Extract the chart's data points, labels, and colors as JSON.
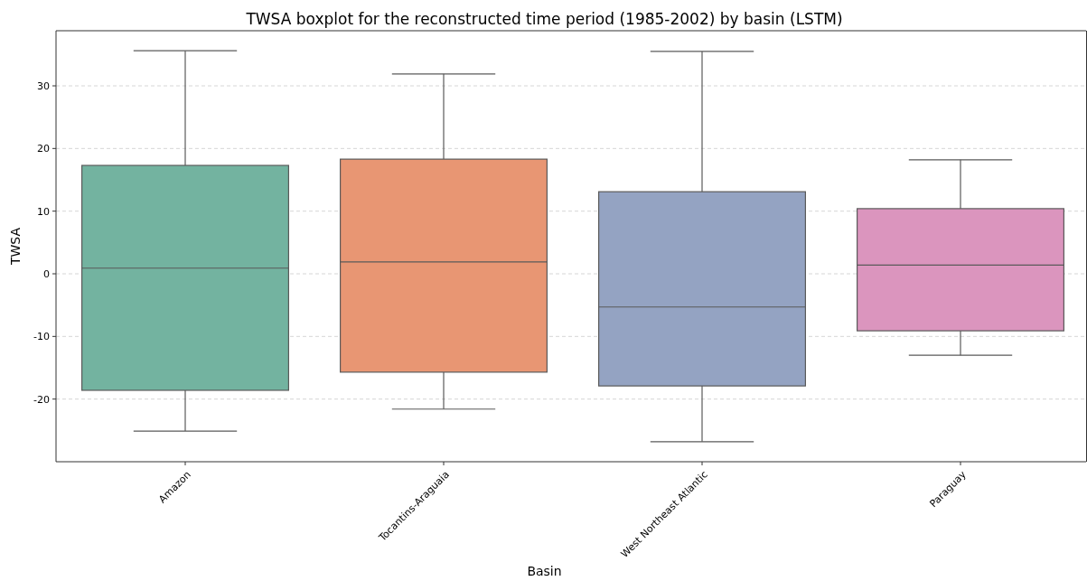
{
  "chart_data": {
    "type": "box",
    "title": "TWSA boxplot for the reconstructed time period (1985-2002) by basin (LSTM)",
    "xlabel": "Basin",
    "ylabel": "TWSA",
    "categories": [
      "Amazon",
      "Tocantins-Araguaia",
      "West Northeast Atlantic",
      "Paraguay"
    ],
    "colors": [
      "#73b3a0",
      "#e89673",
      "#94a3c2",
      "#db95be"
    ],
    "boxes": [
      {
        "low": -25.1,
        "q1": -18.6,
        "median": 0.9,
        "q3": 17.3,
        "high": 35.6
      },
      {
        "low": -21.6,
        "q1": -15.7,
        "median": 1.9,
        "q3": 18.3,
        "high": 31.9
      },
      {
        "low": -26.8,
        "q1": -17.9,
        "median": -5.3,
        "q3": 13.1,
        "high": 35.5
      },
      {
        "low": -13.0,
        "q1": -9.1,
        "median": 1.4,
        "q3": 10.4,
        "high": 18.2
      }
    ],
    "ylim": [
      -30,
      38.8
    ],
    "yticks": [
      -20,
      -10,
      0,
      10,
      20,
      30
    ],
    "grid": "y"
  }
}
